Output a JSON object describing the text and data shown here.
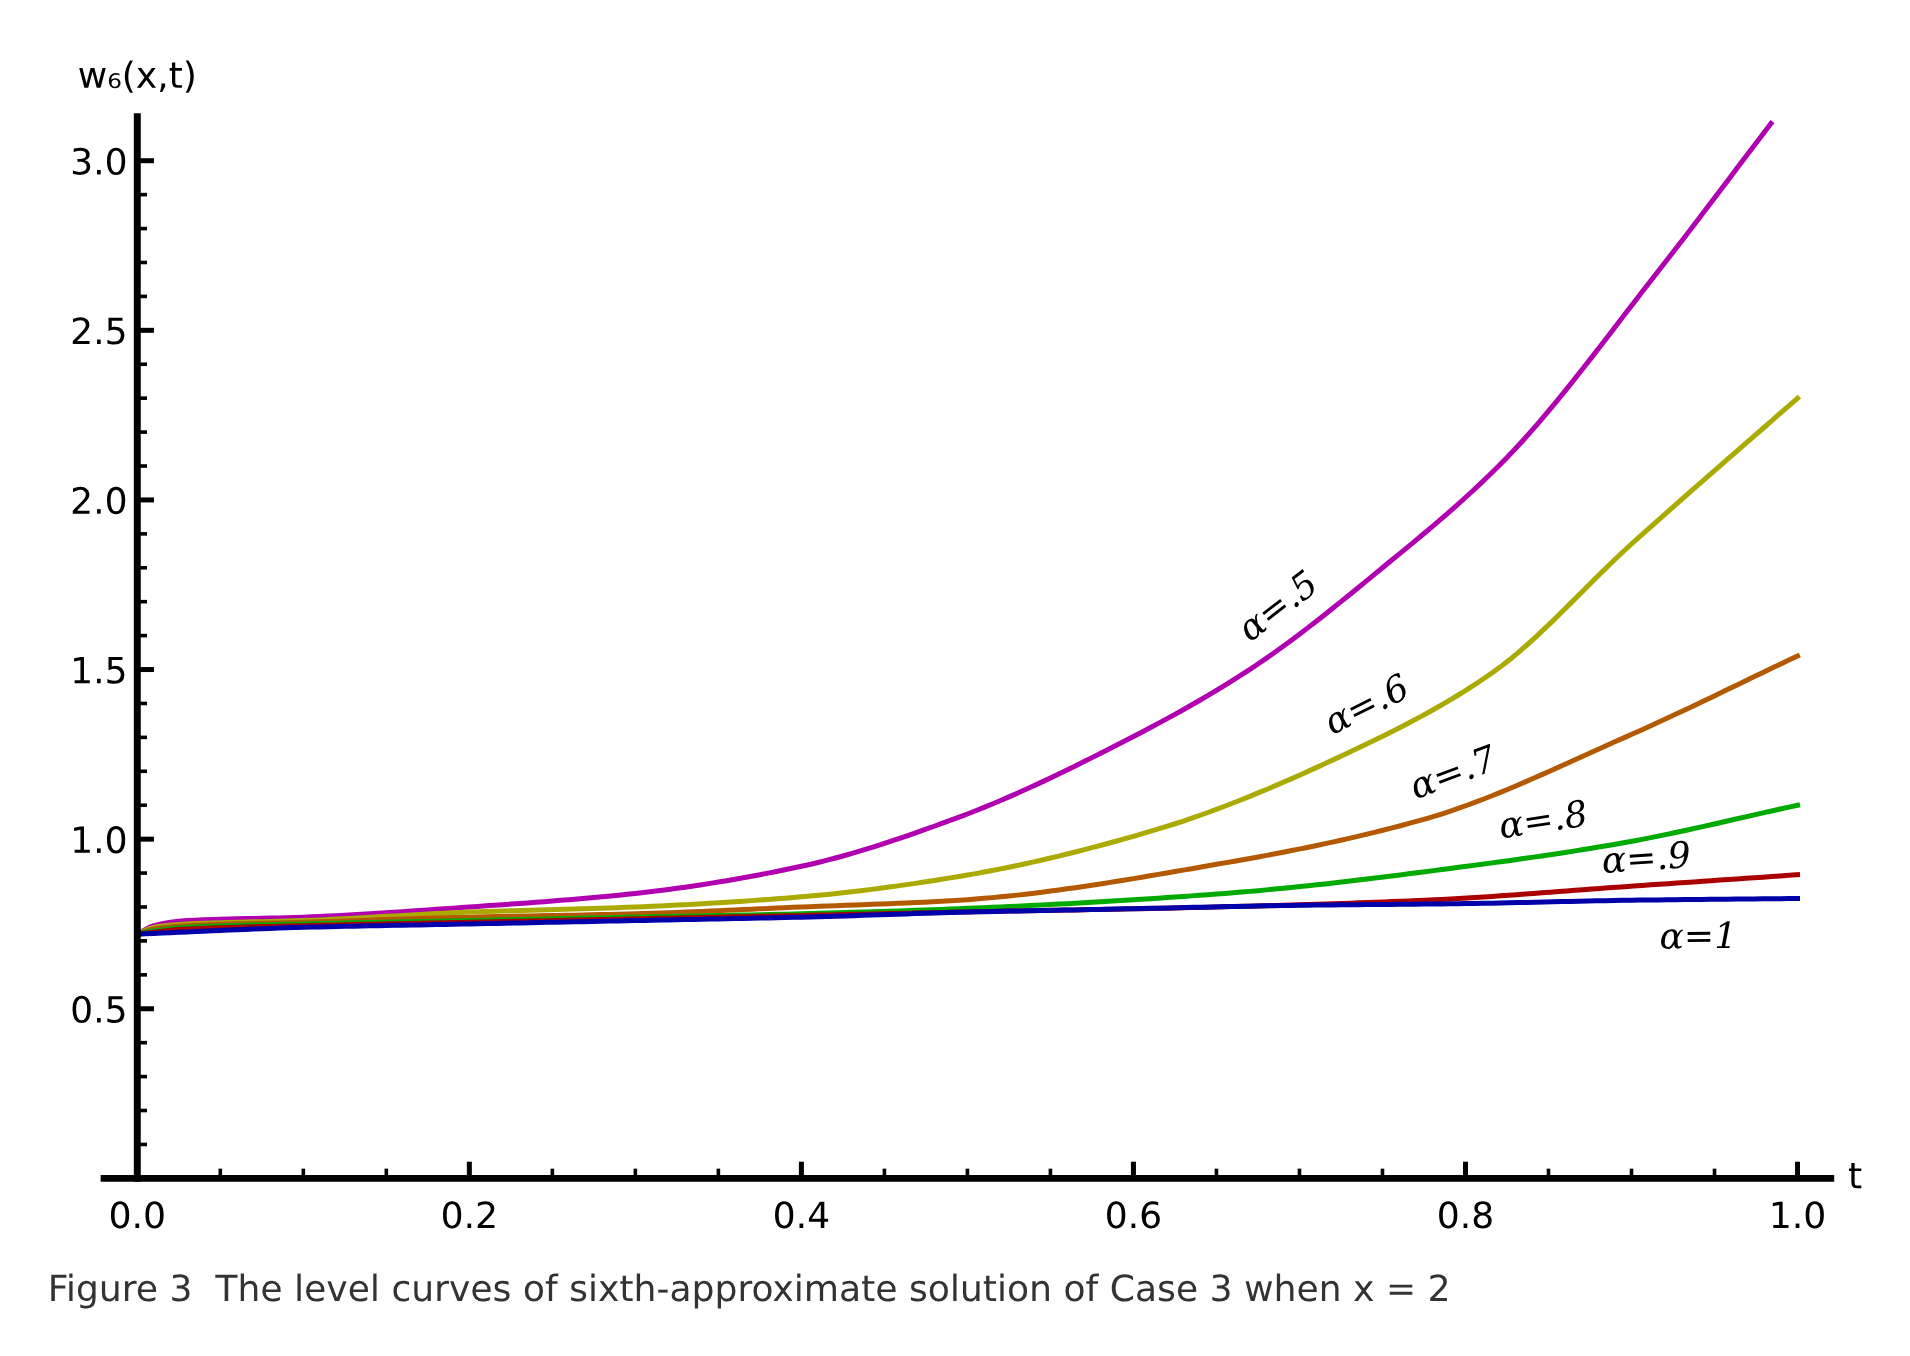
{
  "chart_data": {
    "type": "line",
    "xlabel": "t",
    "ylabel": "w₆(x,t)",
    "xlim": [
      -0.02,
      1.02
    ],
    "ylim": [
      0,
      3.13
    ],
    "xticks": [
      {
        "value": 0,
        "label": "0.0"
      },
      {
        "value": 0.05,
        "label": null
      },
      {
        "value": 0.1,
        "label": null
      },
      {
        "value": 0.15,
        "label": null
      },
      {
        "value": 0.2,
        "label": "0.2"
      },
      {
        "value": 0.25,
        "label": null
      },
      {
        "value": 0.3,
        "label": null
      },
      {
        "value": 0.35,
        "label": null
      },
      {
        "value": 0.4,
        "label": "0.4"
      },
      {
        "value": 0.45,
        "label": null
      },
      {
        "value": 0.5,
        "label": null
      },
      {
        "value": 0.55,
        "label": null
      },
      {
        "value": 0.6,
        "label": "0.6"
      },
      {
        "value": 0.65,
        "label": null
      },
      {
        "value": 0.7,
        "label": null
      },
      {
        "value": 0.75,
        "label": null
      },
      {
        "value": 0.8,
        "label": "0.8"
      },
      {
        "value": 0.85,
        "label": null
      },
      {
        "value": 0.9,
        "label": null
      },
      {
        "value": 0.95,
        "label": null
      },
      {
        "value": 1,
        "label": "1.0"
      }
    ],
    "yticks": [
      {
        "value": 0.1,
        "label": null
      },
      {
        "value": 0.2,
        "label": null
      },
      {
        "value": 0.3,
        "label": null
      },
      {
        "value": 0.4,
        "label": null
      },
      {
        "value": 0.5,
        "label": "0.5"
      },
      {
        "value": 0.6,
        "label": null
      },
      {
        "value": 0.7,
        "label": null
      },
      {
        "value": 0.8,
        "label": null
      },
      {
        "value": 0.9,
        "label": null
      },
      {
        "value": 1,
        "label": "1.0"
      },
      {
        "value": 1.1,
        "label": null
      },
      {
        "value": 1.2,
        "label": null
      },
      {
        "value": 1.3,
        "label": null
      },
      {
        "value": 1.4,
        "label": null
      },
      {
        "value": 1.5,
        "label": "1.5"
      },
      {
        "value": 1.6,
        "label": null
      },
      {
        "value": 1.7,
        "label": null
      },
      {
        "value": 1.8,
        "label": null
      },
      {
        "value": 1.9,
        "label": null
      },
      {
        "value": 2,
        "label": "2.0"
      },
      {
        "value": 2.1,
        "label": null
      },
      {
        "value": 2.2,
        "label": null
      },
      {
        "value": 2.3,
        "label": null
      },
      {
        "value": 2.4,
        "label": null
      },
      {
        "value": 2.5,
        "label": "2.5"
      },
      {
        "value": 2.6,
        "label": null
      },
      {
        "value": 2.7,
        "label": null
      },
      {
        "value": 2.8,
        "label": null
      },
      {
        "value": 2.9,
        "label": null
      },
      {
        "value": 3,
        "label": "3.0"
      }
    ],
    "grid": false,
    "legend": false,
    "marker": "none",
    "line_style": "solid",
    "series": [
      {
        "name": "α=.5",
        "color": "#b000b0",
        "x": [
          0,
          0.01,
          0.03,
          0.1,
          0.2,
          0.3,
          0.4,
          0.495,
          0.595,
          0.67,
          0.75,
          0.824,
          0.917,
          0.984
        ],
        "values": [
          0.72,
          0.745,
          0.76,
          0.77,
          0.8,
          0.84,
          0.92,
          1.065,
          1.29,
          1.5,
          1.8,
          2.12,
          2.68,
          3.11
        ]
      },
      {
        "name": "α=.6",
        "color": "#aaaa00",
        "x": [
          0,
          0.01,
          0.03,
          0.1,
          0.2,
          0.3,
          0.4,
          0.495,
          0.615,
          0.736,
          0.816,
          0.9,
          1.0
        ],
        "values": [
          0.72,
          0.74,
          0.75,
          0.76,
          0.785,
          0.8,
          0.83,
          0.89,
          1.03,
          1.27,
          1.49,
          1.87,
          2.3
        ]
      },
      {
        "name": "α=.7",
        "color": "#b35a00",
        "x": [
          0,
          0.01,
          0.03,
          0.1,
          0.2,
          0.3,
          0.4,
          0.495,
          0.655,
          0.776,
          0.896,
          1.0
        ],
        "values": [
          0.72,
          0.735,
          0.745,
          0.755,
          0.77,
          0.78,
          0.8,
          0.82,
          0.93,
          1.06,
          1.3,
          1.54
        ]
      },
      {
        "name": "α=.8",
        "color": "#00aa00",
        "x": [
          0,
          0.01,
          0.03,
          0.1,
          0.2,
          0.3,
          0.4,
          0.495,
          0.655,
          0.816,
          0.896,
          1.0
        ],
        "values": [
          0.72,
          0.73,
          0.74,
          0.75,
          0.76,
          0.77,
          0.78,
          0.795,
          0.84,
          0.93,
          0.99,
          1.1
        ]
      },
      {
        "name": "α=.9",
        "color": "#aa0000",
        "x": [
          0,
          0.03,
          0.1,
          0.2,
          0.3,
          0.4,
          0.495,
          0.65,
          0.776,
          0.896,
          1.0
        ],
        "values": [
          0.72,
          0.735,
          0.745,
          0.755,
          0.765,
          0.775,
          0.785,
          0.8,
          0.82,
          0.86,
          0.895
        ]
      },
      {
        "name": "α=1",
        "color": "#0000aa",
        "x": [
          0,
          0.1,
          0.2,
          0.3,
          0.4,
          0.5,
          0.6,
          0.7,
          0.8,
          0.9,
          1.0
        ],
        "values": [
          0.72,
          0.74,
          0.75,
          0.76,
          0.77,
          0.785,
          0.795,
          0.805,
          0.81,
          0.82,
          0.825
        ]
      }
    ],
    "annotations": [
      "Figure 3  The level curves of sixth-approximate solution of Case 3 when x = 2"
    ]
  }
}
